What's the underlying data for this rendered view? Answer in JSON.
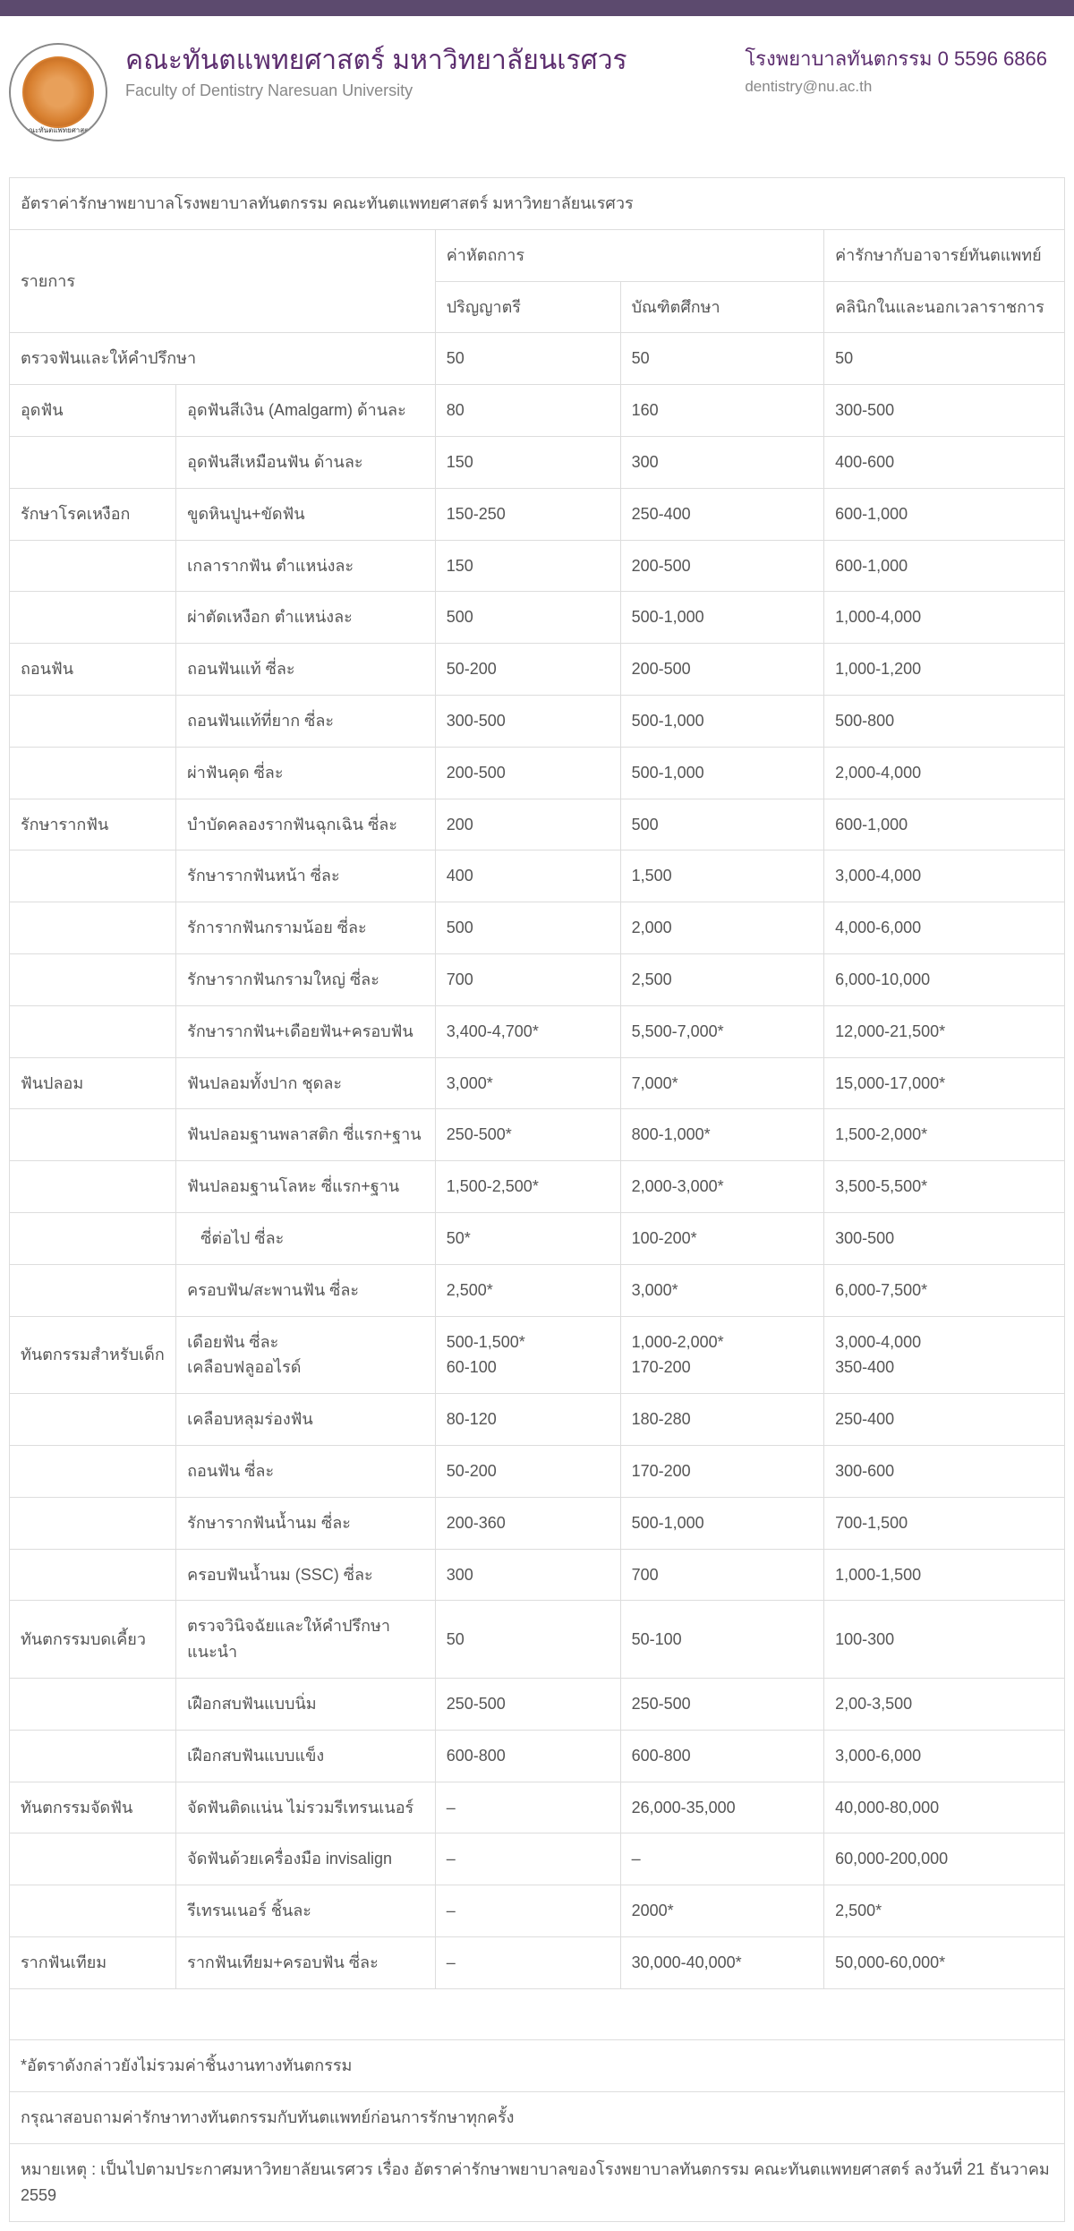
{
  "header": {
    "title_th": "คณะทันตแพทยศาสตร์ มหาวิทยาลัยนเรศวร",
    "title_en": "Faculty of Dentistry Naresuan University",
    "phone": "โรงพยาบาลทันตกรรม 0 5596 6866",
    "email": "dentistry@nu.ac.th",
    "logo_caption": "คณะทันตแพทยศาสตร์"
  },
  "table": {
    "caption": "อัตราค่ารักษาพยาบาลโรงพยาบาลทันตกรรม คณะทันตแพทยศาสตร์ มหาวิทยาลัยนเรศวร",
    "head_item": "รายการ",
    "head_proc": "ค่าหัตถการ",
    "head_dentist": "ค่ารักษากับอาจารย์ทันตแพทย์",
    "head_bachelor": "ปริญญาตรี",
    "head_grad": "บัณฑิตศึกษา",
    "head_clinic": "คลินิกในและนอกเวลาราชการ",
    "rows": [
      {
        "cat": "ตรวจฟันและให้คำปรึกษา",
        "span": 2,
        "item": "",
        "p1": "50",
        "p2": "50",
        "p3": "50"
      },
      {
        "cat": "อุดฟัน",
        "item": "อุดฟันสีเงิน (Amalgarm) ด้านละ",
        "p1": "80",
        "p2": "160",
        "p3": "300-500"
      },
      {
        "cat": "",
        "item": "อุดฟันสีเหมือนฟัน ด้านละ",
        "p1": "150",
        "p2": "300",
        "p3": "400-600"
      },
      {
        "cat": "รักษาโรคเหงือก",
        "item": "ขูดหินปูน+ขัดฟัน",
        "p1": "150-250",
        "p2": "250-400",
        "p3": "600-1,000"
      },
      {
        "cat": "",
        "item": "เกลารากฟัน ตำแหน่งละ",
        "p1": "150",
        "p2": "200-500",
        "p3": "600-1,000"
      },
      {
        "cat": "",
        "item": "ผ่าตัดเหงือก ตำแหน่งละ",
        "p1": "500",
        "p2": "500-1,000",
        "p3": "1,000-4,000"
      },
      {
        "cat": "ถอนฟัน",
        "item": "ถอนฟันแท้ ซี่ละ",
        "p1": "50-200",
        "p2": "200-500",
        "p3": "1,000-1,200"
      },
      {
        "cat": "",
        "item": "ถอนฟันแท้ที่ยาก ซี่ละ",
        "p1": "300-500",
        "p2": "500-1,000",
        "p3": "500-800"
      },
      {
        "cat": "",
        "item": "ผ่าฟันคุด ซี่ละ",
        "p1": "200-500",
        "p2": "500-1,000",
        "p3": "2,000-4,000"
      },
      {
        "cat": "รักษารากฟัน",
        "item": "บำบัดคลองรากฟันฉุกเฉิน ซี่ละ",
        "p1": "200",
        "p2": "500",
        "p3": "600-1,000"
      },
      {
        "cat": "",
        "item": "รักษารากฟันหน้า ซี่ละ",
        "p1": "400",
        "p2": "1,500",
        "p3": "3,000-4,000"
      },
      {
        "cat": "",
        "item": "รัการากฟันกรามน้อย ซี่ละ",
        "p1": "500",
        "p2": "2,000",
        "p3": "4,000-6,000"
      },
      {
        "cat": "",
        "item": "รักษารากฟันกรามใหญ่ ซี่ละ",
        "p1": "700",
        "p2": "2,500",
        "p3": "6,000-10,000"
      },
      {
        "cat": "",
        "item": "รักษารากฟัน+เดือยฟัน+ครอบฟัน",
        "p1": "3,400-4,700*",
        "p2": "5,500-7,000*",
        "p3": "12,000-21,500*"
      },
      {
        "cat": "ฟันปลอม",
        "item": "ฟันปลอมทั้งปาก ชุดละ",
        "p1": "3,000*",
        "p2": "7,000*",
        "p3": "15,000-17,000*"
      },
      {
        "cat": "",
        "item": "ฟันปลอมฐานพลาสติก ซี่แรก+ฐาน",
        "p1": "250-500*",
        "p2": "800-1,000*",
        "p3": "1,500-2,000*"
      },
      {
        "cat": "",
        "item": "ฟันปลอมฐานโลหะ ซี่แรก+ฐาน",
        "p1": "1,500-2,500*",
        "p2": "2,000-3,000*",
        "p3": "3,500-5,500*"
      },
      {
        "cat": "",
        "item": "   ซี่ต่อไป ซี่ละ",
        "p1": "50*",
        "p2": "100-200*",
        "p3": "300-500"
      },
      {
        "cat": "",
        "item": "ครอบฟัน/สะพานฟัน ซี่ละ",
        "p1": "2,500*",
        "p2": "3,000*",
        "p3": "6,000-7,500*"
      },
      {
        "cat": "ทันตกรรมสำหรับเด็ก",
        "item": "เดือยฟัน ซี่ละ\nเคลือบฟลูออไรด์",
        "p1": "500-1,500*\n60-100",
        "p2": "1,000-2,000*\n170-200",
        "p3": "3,000-4,000\n350-400"
      },
      {
        "cat": "",
        "item": "เคลือบหลุมร่องฟัน",
        "p1": "80-120",
        "p2": "180-280",
        "p3": "250-400"
      },
      {
        "cat": "",
        "item": "ถอนฟัน ซี่ละ",
        "p1": "50-200",
        "p2": "170-200",
        "p3": "300-600"
      },
      {
        "cat": "",
        "item": "รักษารากฟันน้ำนม ซี่ละ",
        "p1": "200-360",
        "p2": "500-1,000",
        "p3": "700-1,500"
      },
      {
        "cat": "",
        "item": "ครอบฟันน้ำนม (SSC) ซี่ละ",
        "p1": "300",
        "p2": "700",
        "p3": "1,000-1,500"
      },
      {
        "cat": "ทันตกรรมบดเคี้ยว",
        "item": "ตรวจวินิจฉัยและให้คำปรึกษาแนะนำ",
        "p1": "50",
        "p2": "50-100",
        "p3": "100-300"
      },
      {
        "cat": "",
        "item": "เฝือกสบฟันแบบนิ่ม",
        "p1": "250-500",
        "p2": "250-500",
        "p3": "2,00-3,500"
      },
      {
        "cat": "",
        "item": "เฝือกสบฟันแบบแข็ง",
        "p1": "600-800",
        "p2": "600-800",
        "p3": "3,000-6,000"
      },
      {
        "cat": "ทันตกรรมจัดฟัน",
        "item": "จัดฟันติดแน่น ไม่รวมรีเทรนเนอร์",
        "p1": "–",
        "p2": "26,000-35,000",
        "p3": "40,000-80,000"
      },
      {
        "cat": "",
        "item": "จัดฟันด้วยเครื่องมือ invisalign",
        "p1": "–",
        "p2": "–",
        "p3": "60,000-200,000"
      },
      {
        "cat": "",
        "item": "รีเทรนเนอร์ ชิ้นละ",
        "p1": "–",
        "p2": "2000*",
        "p3": "2,500*"
      },
      {
        "cat": "รากฟันเทียม",
        "item": "รากฟันเทียม+ครอบฟัน ซี่ละ",
        "p1": "–",
        "p2": "30,000-40,000*",
        "p3": "50,000-60,000*"
      }
    ],
    "footnote1": "*อัตราดังกล่าวยังไม่รวมค่าชิ้นงานทางทันตกรรม",
    "footnote2": "กรุณาสอบถามค่ารักษาทางทันตกรรมกับทันตแพทย์ก่อนการรักษาทุกครั้ง",
    "footnote3": "หมายเหตุ : เป็นไปตามประกาศมหาวิทยาลัยนเรศวร เรื่อง อัตราค่ารักษาพยาบาลของโรงพยาบาลทันตกรรม คณะทันตแพทยศาสตร์ ลงวันที่ 21 ธันวาคม 2559"
  },
  "colors": {
    "topbar": "#5c4a6e",
    "title": "#5c2d6e",
    "subtitle": "#888888",
    "border": "#dddddd",
    "text": "#555555"
  }
}
